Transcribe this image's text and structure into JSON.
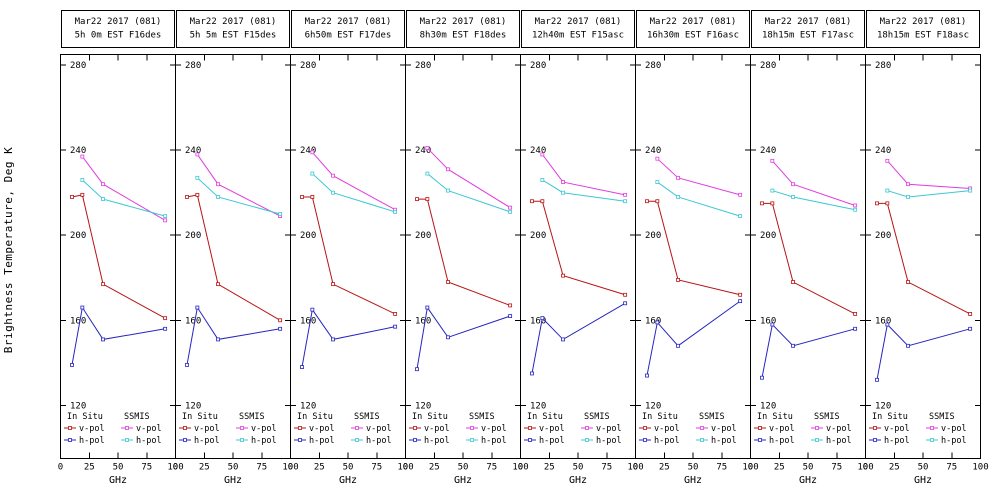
{
  "figure": {
    "ylabel": "Brightness Temperature, Deg K"
  },
  "axes": {
    "xlabel": "GHz",
    "xlim": [
      0,
      100
    ],
    "ylim": [
      95,
      285
    ],
    "xticks": [
      0,
      25,
      50,
      75,
      100
    ],
    "yticks": [
      120,
      160,
      200,
      240,
      280
    ],
    "grid": false
  },
  "legend": {
    "position": "bottom-inside",
    "columns": [
      {
        "title": "In Situ",
        "entries": [
          {
            "label": "v-pol",
            "color": "#b81414"
          },
          {
            "label": "h-pol",
            "color": "#2424c0"
          }
        ]
      },
      {
        "title": "SSMIS",
        "entries": [
          {
            "label": "v-pol",
            "color": "#e03ce0"
          },
          {
            "label": "h-pol",
            "color": "#3cc8d4"
          }
        ]
      }
    ]
  },
  "chart_data": [
    {
      "type": "line",
      "title": "Mar22 2017 (081)",
      "subtitle": "5h 0m EST F16des",
      "series": [
        {
          "name": "In Situ v-pol",
          "x": [
            10,
            19,
            37,
            91
          ],
          "y": [
            218,
            219,
            177,
            161
          ]
        },
        {
          "name": "In Situ h-pol",
          "x": [
            10,
            19,
            37,
            91
          ],
          "y": [
            139,
            166,
            151,
            156
          ]
        },
        {
          "name": "SSMIS v-pol",
          "x": [
            19,
            37,
            91
          ],
          "y": [
            237,
            224,
            207
          ]
        },
        {
          "name": "SSMIS h-pol",
          "x": [
            19,
            37,
            91
          ],
          "y": [
            226,
            217,
            209
          ]
        }
      ]
    },
    {
      "type": "line",
      "title": "Mar22 2017 (081)",
      "subtitle": "5h 5m EST F15des",
      "series": [
        {
          "name": "In Situ v-pol",
          "x": [
            10,
            19,
            37,
            91
          ],
          "y": [
            218,
            219,
            177,
            160
          ]
        },
        {
          "name": "In Situ h-pol",
          "x": [
            10,
            19,
            37,
            91
          ],
          "y": [
            139,
            166,
            151,
            156
          ]
        },
        {
          "name": "SSMIS v-pol",
          "x": [
            19,
            37,
            91
          ],
          "y": [
            238,
            224,
            209
          ]
        },
        {
          "name": "SSMIS h-pol",
          "x": [
            19,
            37,
            91
          ],
          "y": [
            227,
            218,
            210
          ]
        }
      ]
    },
    {
      "type": "line",
      "title": "Mar22 2017 (081)",
      "subtitle": "6h50m EST F17des",
      "series": [
        {
          "name": "In Situ v-pol",
          "x": [
            10,
            19,
            37,
            91
          ],
          "y": [
            218,
            218,
            177,
            163
          ]
        },
        {
          "name": "In Situ h-pol",
          "x": [
            10,
            19,
            37,
            91
          ],
          "y": [
            138,
            165,
            151,
            157
          ]
        },
        {
          "name": "SSMIS v-pol",
          "x": [
            19,
            37,
            91
          ],
          "y": [
            239,
            228,
            212
          ]
        },
        {
          "name": "SSMIS h-pol",
          "x": [
            19,
            37,
            91
          ],
          "y": [
            229,
            220,
            211
          ]
        }
      ]
    },
    {
      "type": "line",
      "title": "Mar22 2017 (081)",
      "subtitle": "8h30m EST F18des",
      "series": [
        {
          "name": "In Situ v-pol",
          "x": [
            10,
            19,
            37,
            91
          ],
          "y": [
            217,
            217,
            178,
            167
          ]
        },
        {
          "name": "In Situ h-pol",
          "x": [
            10,
            19,
            37,
            91
          ],
          "y": [
            137,
            166,
            152,
            162
          ]
        },
        {
          "name": "SSMIS v-pol",
          "x": [
            19,
            37,
            91
          ],
          "y": [
            241,
            231,
            213
          ]
        },
        {
          "name": "SSMIS h-pol",
          "x": [
            19,
            37,
            91
          ],
          "y": [
            229,
            221,
            211
          ]
        }
      ]
    },
    {
      "type": "line",
      "title": "Mar22 2017 (081)",
      "subtitle": "12h40m EST F15asc",
      "series": [
        {
          "name": "In Situ v-pol",
          "x": [
            10,
            19,
            37,
            91
          ],
          "y": [
            216,
            216,
            181,
            172
          ]
        },
        {
          "name": "In Situ h-pol",
          "x": [
            10,
            19,
            37,
            91
          ],
          "y": [
            135,
            161,
            151,
            168
          ]
        },
        {
          "name": "SSMIS v-pol",
          "x": [
            19,
            37,
            91
          ],
          "y": [
            238,
            225,
            219
          ]
        },
        {
          "name": "SSMIS h-pol",
          "x": [
            19,
            37,
            91
          ],
          "y": [
            226,
            220,
            216
          ]
        }
      ]
    },
    {
      "type": "line",
      "title": "Mar22 2017 (081)",
      "subtitle": "16h30m EST F16asc",
      "series": [
        {
          "name": "In Situ v-pol",
          "x": [
            10,
            19,
            37,
            91
          ],
          "y": [
            216,
            216,
            179,
            172
          ]
        },
        {
          "name": "In Situ h-pol",
          "x": [
            10,
            19,
            37,
            91
          ],
          "y": [
            134,
            159,
            148,
            169
          ]
        },
        {
          "name": "SSMIS v-pol",
          "x": [
            19,
            37,
            91
          ],
          "y": [
            236,
            227,
            219
          ]
        },
        {
          "name": "SSMIS h-pol",
          "x": [
            19,
            37,
            91
          ],
          "y": [
            225,
            218,
            209
          ]
        }
      ]
    },
    {
      "type": "line",
      "title": "Mar22 2017 (081)",
      "subtitle": "18h15m EST F17asc",
      "series": [
        {
          "name": "In Situ v-pol",
          "x": [
            10,
            19,
            37,
            91
          ],
          "y": [
            215,
            215,
            178,
            163
          ]
        },
        {
          "name": "In Situ h-pol",
          "x": [
            10,
            19,
            37,
            91
          ],
          "y": [
            133,
            158,
            148,
            156
          ]
        },
        {
          "name": "SSMIS v-pol",
          "x": [
            19,
            37,
            91
          ],
          "y": [
            235,
            224,
            214
          ]
        },
        {
          "name": "SSMIS h-pol",
          "x": [
            19,
            37,
            91
          ],
          "y": [
            221,
            218,
            212
          ]
        }
      ]
    },
    {
      "type": "line",
      "title": "Mar22 2017 (081)",
      "subtitle": "18h15m EST F18asc",
      "series": [
        {
          "name": "In Situ v-pol",
          "x": [
            10,
            19,
            37,
            91
          ],
          "y": [
            215,
            215,
            178,
            163
          ]
        },
        {
          "name": "In Situ h-pol",
          "x": [
            10,
            19,
            37,
            91
          ],
          "y": [
            132,
            158,
            148,
            156
          ]
        },
        {
          "name": "SSMIS v-pol",
          "x": [
            19,
            37,
            91
          ],
          "y": [
            235,
            224,
            222
          ]
        },
        {
          "name": "SSMIS h-pol",
          "x": [
            19,
            37,
            91
          ],
          "y": [
            221,
            218,
            221
          ]
        }
      ]
    }
  ]
}
